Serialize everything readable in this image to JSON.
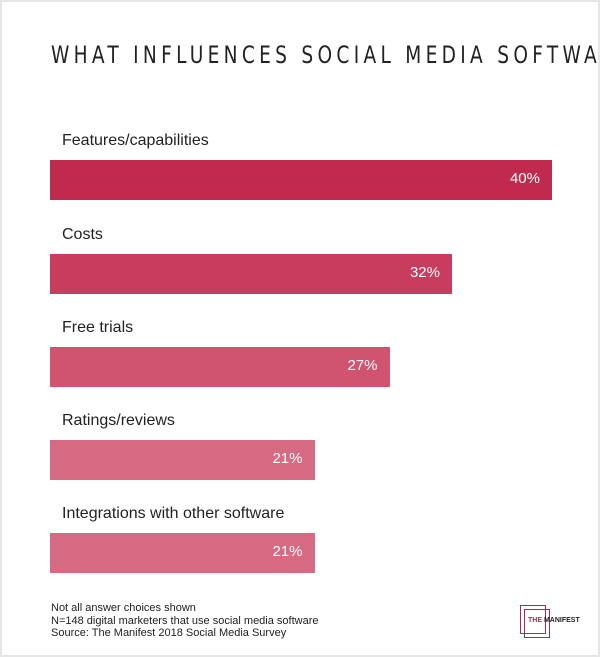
{
  "chart_data": {
    "type": "bar",
    "orientation": "horizontal",
    "title": "WHAT INFLUENCES SOCIAL MEDIA SOFTWARE PUCHASING DECISIONS?",
    "categories": [
      "Features/capabilities",
      "Costs",
      "Free trials",
      "Ratings/reviews",
      "Integrations with other software"
    ],
    "values": [
      40,
      32,
      27,
      21,
      21
    ],
    "value_labels": [
      "40%",
      "32%",
      "27%",
      "21%",
      "21%"
    ],
    "colors": [
      "#c12a4f",
      "#c83c5d",
      "#d05470",
      "#d66a82",
      "#d66a82"
    ],
    "xlim": [
      0,
      40
    ],
    "grid": false
  },
  "notes": [
    "Not all answer choices shown",
    "N=148 digital marketers that use social media software",
    "Source: The Manifest 2018 Social Media Survey"
  ],
  "logo": {
    "text": "THE MANIFEST"
  }
}
